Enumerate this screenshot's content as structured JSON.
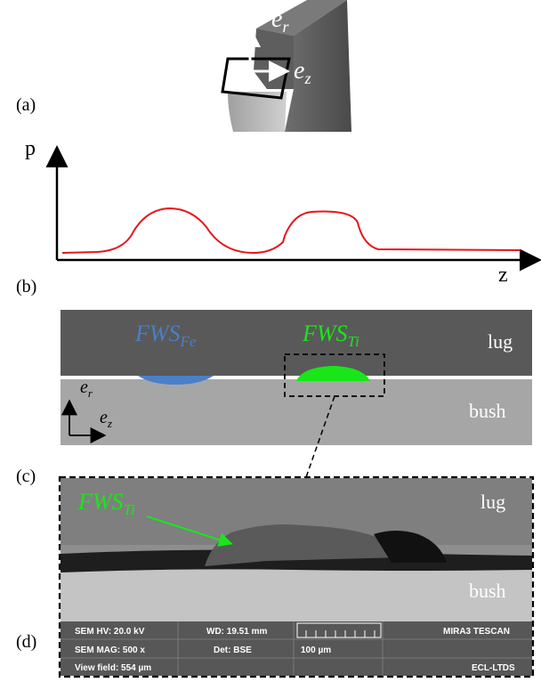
{
  "panels": {
    "a": {
      "label": "(a)",
      "axis_r": "e",
      "axis_r_sub": "r",
      "axis_z": "e",
      "axis_z_sub": "z"
    },
    "b": {
      "label": "(b)",
      "y_label": "p",
      "x_label": "z"
    },
    "c": {
      "label": "(c)",
      "fws_fe": "FWS",
      "fws_fe_sub": "Fe",
      "fws_ti": "FWS",
      "fws_ti_sub": "Ti",
      "lug": "lug",
      "bush": "bush",
      "axis_r": "e",
      "axis_r_sub": "r",
      "axis_z": "e",
      "axis_z_sub": "z"
    },
    "d": {
      "label": "(d)",
      "fws_ti": "FWS",
      "fws_ti_sub": "Ti",
      "lug": "lug",
      "bush": "bush",
      "sem": {
        "hv": "SEM HV: 20.0 kV",
        "wd": "WD: 19.51 mm",
        "brand": "MIRA3 TESCAN",
        "mag": "SEM MAG: 500 x",
        "det": "Det: BSE",
        "scale": "100 µm",
        "field": "View field: 554 µm",
        "lab": "ECL-LTDS"
      }
    }
  },
  "colors": {
    "curve": "#e8141a",
    "fws_fe": "#4a7fc9",
    "fws_ti": "#19e619",
    "lug": "#595959",
    "bush": "#a6a6a6"
  }
}
